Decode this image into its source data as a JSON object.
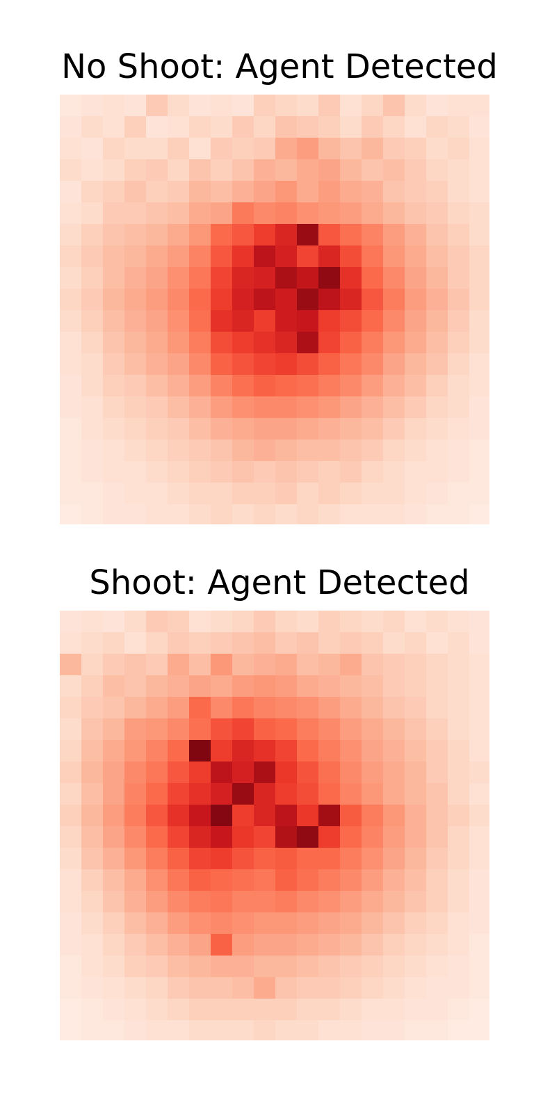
{
  "chart_data": [
    {
      "type": "heatmap",
      "title": "No Shoot: Agent Detected",
      "grid": false,
      "colormap": "Reds",
      "color_scale": [
        0,
        1
      ],
      "colors": [
        "#fff5f0",
        "#fee0d2",
        "#fcbba1",
        "#fc9272",
        "#fb6a4a",
        "#ef3b2c",
        "#cb181d",
        "#a50f15",
        "#67000d"
      ],
      "rows": 20,
      "cols": 20,
      "values": [
        [
          0.08,
          0.1,
          0.12,
          0.1,
          0.2,
          0.14,
          0.1,
          0.12,
          0.1,
          0.18,
          0.16,
          0.14,
          0.2,
          0.12,
          0.16,
          0.22,
          0.14,
          0.1,
          0.12,
          0.12
        ],
        [
          0.1,
          0.14,
          0.12,
          0.18,
          0.1,
          0.12,
          0.16,
          0.14,
          0.2,
          0.16,
          0.22,
          0.2,
          0.18,
          0.14,
          0.2,
          0.16,
          0.12,
          0.16,
          0.14,
          0.1
        ],
        [
          0.12,
          0.1,
          0.16,
          0.14,
          0.14,
          0.18,
          0.12,
          0.2,
          0.18,
          0.2,
          0.3,
          0.34,
          0.26,
          0.22,
          0.26,
          0.2,
          0.18,
          0.14,
          0.16,
          0.12
        ],
        [
          0.14,
          0.12,
          0.14,
          0.18,
          0.2,
          0.16,
          0.22,
          0.18,
          0.22,
          0.28,
          0.26,
          0.3,
          0.32,
          0.26,
          0.22,
          0.24,
          0.2,
          0.16,
          0.14,
          0.12
        ],
        [
          0.1,
          0.16,
          0.18,
          0.22,
          0.18,
          0.2,
          0.26,
          0.24,
          0.28,
          0.32,
          0.36,
          0.3,
          0.34,
          0.3,
          0.28,
          0.22,
          0.2,
          0.18,
          0.14,
          0.12
        ],
        [
          0.12,
          0.14,
          0.2,
          0.2,
          0.22,
          0.24,
          0.3,
          0.32,
          0.45,
          0.4,
          0.42,
          0.38,
          0.36,
          0.34,
          0.3,
          0.26,
          0.22,
          0.2,
          0.16,
          0.14
        ],
        [
          0.14,
          0.18,
          0.22,
          0.24,
          0.26,
          0.3,
          0.36,
          0.5,
          0.55,
          0.62,
          0.7,
          0.9,
          0.55,
          0.48,
          0.42,
          0.34,
          0.28,
          0.22,
          0.18,
          0.14
        ],
        [
          0.16,
          0.2,
          0.24,
          0.26,
          0.3,
          0.34,
          0.42,
          0.55,
          0.65,
          0.8,
          0.72,
          0.6,
          0.7,
          0.58,
          0.46,
          0.36,
          0.3,
          0.24,
          0.2,
          0.16
        ],
        [
          0.14,
          0.18,
          0.24,
          0.28,
          0.32,
          0.38,
          0.46,
          0.6,
          0.7,
          0.72,
          0.86,
          0.78,
          0.92,
          0.66,
          0.5,
          0.4,
          0.32,
          0.26,
          0.2,
          0.16
        ],
        [
          0.16,
          0.2,
          0.26,
          0.3,
          0.34,
          0.4,
          0.5,
          0.62,
          0.72,
          0.8,
          0.74,
          0.9,
          0.8,
          0.7,
          0.55,
          0.44,
          0.34,
          0.28,
          0.22,
          0.16
        ],
        [
          0.14,
          0.18,
          0.24,
          0.28,
          0.32,
          0.38,
          0.48,
          0.66,
          0.7,
          0.62,
          0.74,
          0.76,
          0.62,
          0.58,
          0.5,
          0.4,
          0.32,
          0.26,
          0.2,
          0.14
        ],
        [
          0.12,
          0.16,
          0.22,
          0.26,
          0.3,
          0.36,
          0.44,
          0.58,
          0.62,
          0.66,
          0.7,
          0.85,
          0.6,
          0.52,
          0.44,
          0.36,
          0.3,
          0.24,
          0.18,
          0.14
        ],
        [
          0.12,
          0.14,
          0.2,
          0.24,
          0.28,
          0.32,
          0.4,
          0.52,
          0.56,
          0.6,
          0.62,
          0.58,
          0.52,
          0.46,
          0.4,
          0.32,
          0.26,
          0.22,
          0.16,
          0.12
        ],
        [
          0.1,
          0.14,
          0.18,
          0.2,
          0.24,
          0.28,
          0.34,
          0.42,
          0.48,
          0.52,
          0.5,
          0.48,
          0.44,
          0.4,
          0.34,
          0.28,
          0.24,
          0.18,
          0.14,
          0.12
        ],
        [
          0.1,
          0.12,
          0.16,
          0.18,
          0.2,
          0.24,
          0.28,
          0.34,
          0.38,
          0.4,
          0.4,
          0.38,
          0.36,
          0.32,
          0.28,
          0.24,
          0.2,
          0.16,
          0.14,
          0.1
        ],
        [
          0.08,
          0.12,
          0.14,
          0.16,
          0.18,
          0.2,
          0.24,
          0.28,
          0.3,
          0.32,
          0.32,
          0.3,
          0.28,
          0.26,
          0.24,
          0.2,
          0.16,
          0.14,
          0.12,
          0.1
        ],
        [
          0.08,
          0.1,
          0.12,
          0.14,
          0.16,
          0.18,
          0.2,
          0.22,
          0.26,
          0.28,
          0.26,
          0.24,
          0.24,
          0.22,
          0.2,
          0.16,
          0.14,
          0.12,
          0.1,
          0.08
        ],
        [
          0.08,
          0.1,
          0.12,
          0.12,
          0.14,
          0.16,
          0.18,
          0.2,
          0.22,
          0.2,
          0.22,
          0.2,
          0.18,
          0.2,
          0.16,
          0.14,
          0.12,
          0.12,
          0.1,
          0.08
        ],
        [
          0.08,
          0.08,
          0.1,
          0.12,
          0.12,
          0.14,
          0.16,
          0.16,
          0.18,
          0.18,
          0.2,
          0.16,
          0.18,
          0.16,
          0.14,
          0.14,
          0.12,
          0.1,
          0.08,
          0.08
        ],
        [
          0.06,
          0.08,
          0.1,
          0.1,
          0.12,
          0.12,
          0.14,
          0.16,
          0.14,
          0.16,
          0.14,
          0.16,
          0.14,
          0.12,
          0.12,
          0.12,
          0.1,
          0.08,
          0.08,
          0.06
        ]
      ]
    },
    {
      "type": "heatmap",
      "title": "Shoot: Agent Detected",
      "grid": false,
      "colormap": "Reds",
      "color_scale": [
        0,
        1
      ],
      "colors": [
        "#fff5f0",
        "#fee0d2",
        "#fcbba1",
        "#fc9272",
        "#fb6a4a",
        "#ef3b2c",
        "#cb181d",
        "#a50f15",
        "#67000d"
      ],
      "rows": 20,
      "cols": 20,
      "values": [
        [
          0.1,
          0.12,
          0.1,
          0.14,
          0.2,
          0.18,
          0.12,
          0.14,
          0.16,
          0.2,
          0.16,
          0.14,
          0.18,
          0.16,
          0.14,
          0.16,
          0.12,
          0.14,
          0.12,
          0.1
        ],
        [
          0.12,
          0.14,
          0.16,
          0.12,
          0.16,
          0.2,
          0.18,
          0.2,
          0.22,
          0.24,
          0.2,
          0.22,
          0.18,
          0.2,
          0.18,
          0.14,
          0.16,
          0.12,
          0.14,
          0.1
        ],
        [
          0.26,
          0.16,
          0.2,
          0.22,
          0.2,
          0.3,
          0.24,
          0.36,
          0.26,
          0.28,
          0.3,
          0.24,
          0.26,
          0.3,
          0.22,
          0.2,
          0.18,
          0.16,
          0.14,
          0.12
        ],
        [
          0.14,
          0.18,
          0.24,
          0.22,
          0.26,
          0.28,
          0.32,
          0.3,
          0.34,
          0.36,
          0.34,
          0.3,
          0.28,
          0.26,
          0.24,
          0.2,
          0.18,
          0.16,
          0.14,
          0.12
        ],
        [
          0.16,
          0.2,
          0.22,
          0.26,
          0.3,
          0.34,
          0.5,
          0.4,
          0.46,
          0.42,
          0.4,
          0.38,
          0.34,
          0.3,
          0.26,
          0.22,
          0.2,
          0.16,
          0.14,
          0.12
        ],
        [
          0.14,
          0.22,
          0.26,
          0.34,
          0.36,
          0.4,
          0.48,
          0.56,
          0.6,
          0.52,
          0.5,
          0.44,
          0.4,
          0.34,
          0.3,
          0.26,
          0.22,
          0.18,
          0.14,
          0.12
        ],
        [
          0.16,
          0.24,
          0.3,
          0.36,
          0.42,
          0.5,
          0.95,
          0.62,
          0.7,
          0.66,
          0.6,
          0.5,
          0.44,
          0.38,
          0.32,
          0.28,
          0.24,
          0.2,
          0.16,
          0.12
        ],
        [
          0.18,
          0.26,
          0.32,
          0.4,
          0.46,
          0.55,
          0.62,
          0.8,
          0.72,
          0.86,
          0.64,
          0.56,
          0.48,
          0.4,
          0.34,
          0.3,
          0.26,
          0.2,
          0.16,
          0.14
        ],
        [
          0.16,
          0.24,
          0.32,
          0.42,
          0.5,
          0.6,
          0.66,
          0.72,
          0.9,
          0.7,
          0.62,
          0.58,
          0.5,
          0.42,
          0.36,
          0.3,
          0.26,
          0.22,
          0.16,
          0.12
        ],
        [
          0.18,
          0.26,
          0.34,
          0.44,
          0.55,
          0.66,
          0.76,
          0.94,
          0.62,
          0.7,
          0.8,
          0.64,
          0.88,
          0.54,
          0.44,
          0.36,
          0.28,
          0.22,
          0.18,
          0.14
        ],
        [
          0.16,
          0.24,
          0.32,
          0.4,
          0.5,
          0.6,
          0.7,
          0.76,
          0.64,
          0.6,
          0.84,
          0.92,
          0.62,
          0.5,
          0.42,
          0.34,
          0.28,
          0.22,
          0.16,
          0.12
        ],
        [
          0.14,
          0.22,
          0.28,
          0.36,
          0.44,
          0.52,
          0.6,
          0.62,
          0.56,
          0.52,
          0.54,
          0.5,
          0.5,
          0.44,
          0.38,
          0.32,
          0.26,
          0.2,
          0.16,
          0.12
        ],
        [
          0.12,
          0.18,
          0.24,
          0.3,
          0.38,
          0.46,
          0.52,
          0.5,
          0.48,
          0.46,
          0.52,
          0.48,
          0.44,
          0.4,
          0.34,
          0.28,
          0.24,
          0.18,
          0.14,
          0.1
        ],
        [
          0.12,
          0.16,
          0.22,
          0.28,
          0.34,
          0.4,
          0.44,
          0.46,
          0.42,
          0.42,
          0.44,
          0.4,
          0.38,
          0.34,
          0.3,
          0.26,
          0.22,
          0.18,
          0.14,
          0.1
        ],
        [
          0.1,
          0.14,
          0.18,
          0.24,
          0.28,
          0.34,
          0.38,
          0.4,
          0.38,
          0.36,
          0.36,
          0.34,
          0.32,
          0.3,
          0.26,
          0.22,
          0.18,
          0.16,
          0.12,
          0.1
        ],
        [
          0.1,
          0.12,
          0.16,
          0.2,
          0.24,
          0.28,
          0.32,
          0.52,
          0.34,
          0.32,
          0.32,
          0.3,
          0.28,
          0.26,
          0.22,
          0.18,
          0.16,
          0.14,
          0.12,
          0.08
        ],
        [
          0.08,
          0.12,
          0.14,
          0.18,
          0.2,
          0.24,
          0.26,
          0.28,
          0.28,
          0.26,
          0.26,
          0.24,
          0.22,
          0.2,
          0.18,
          0.16,
          0.14,
          0.12,
          0.1,
          0.08
        ],
        [
          0.08,
          0.1,
          0.12,
          0.14,
          0.16,
          0.2,
          0.22,
          0.22,
          0.24,
          0.3,
          0.22,
          0.2,
          0.2,
          0.18,
          0.16,
          0.14,
          0.12,
          0.1,
          0.1,
          0.08
        ],
        [
          0.06,
          0.08,
          0.1,
          0.12,
          0.14,
          0.16,
          0.18,
          0.18,
          0.18,
          0.18,
          0.18,
          0.16,
          0.16,
          0.14,
          0.12,
          0.12,
          0.1,
          0.1,
          0.08,
          0.06
        ],
        [
          0.06,
          0.08,
          0.08,
          0.1,
          0.12,
          0.12,
          0.14,
          0.14,
          0.14,
          0.16,
          0.14,
          0.14,
          0.12,
          0.12,
          0.1,
          0.1,
          0.08,
          0.08,
          0.06,
          0.06
        ]
      ]
    }
  ]
}
